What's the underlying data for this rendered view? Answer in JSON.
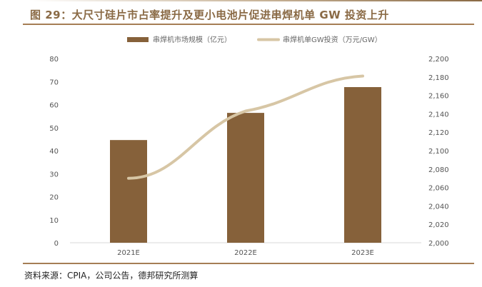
{
  "title": "图 29：大尺寸硅片市占率提升及更小电池片促进串焊机单 GW 投资上升",
  "source": "资料来源：CPIA，公司公告，德邦研究所测算",
  "chart_data": {
    "type": "bar+line",
    "categories": [
      "2021E",
      "2022E",
      "2023E"
    ],
    "series": [
      {
        "name": "串焊机市场规模（亿元）",
        "type": "bar",
        "axis": "left",
        "color": "#86613a",
        "values": [
          44.6,
          56.4,
          67.6
        ]
      },
      {
        "name": "串焊机单GW投资（万元/GW）",
        "type": "line",
        "axis": "right",
        "color": "#d7c6a5",
        "values": [
          2070,
          2143,
          2181
        ]
      }
    ],
    "ylim_left": [
      0,
      80
    ],
    "yticks_left": [
      "0",
      "10",
      "20",
      "30",
      "40",
      "50",
      "60",
      "70",
      "80"
    ],
    "ylim_right": [
      2000,
      2200
    ],
    "yticks_right": [
      "2,000",
      "2,020",
      "2,040",
      "2,060",
      "2,080",
      "2,100",
      "2,120",
      "2,140",
      "2,160",
      "2,180",
      "2,200"
    ],
    "legend": "top"
  }
}
